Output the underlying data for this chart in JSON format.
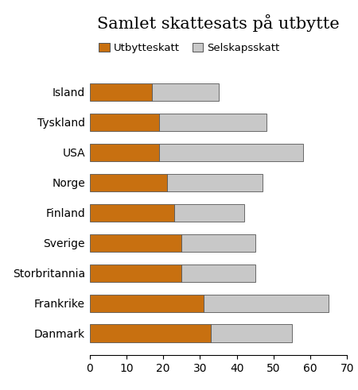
{
  "title": "Samlet skattesats på utbytte",
  "categories": [
    "Island",
    "Tyskland",
    "USA",
    "Norge",
    "Finland",
    "Sverige",
    "Storbritannia",
    "Frankrike",
    "Danmark"
  ],
  "utbytteskatt": [
    17,
    19,
    19,
    21,
    23,
    25,
    25,
    31,
    33
  ],
  "selskapsskatt": [
    18,
    29,
    39,
    26,
    19,
    20,
    20,
    34,
    22
  ],
  "color_utbytte": "#C87010",
  "color_selskap": "#C8C8C8",
  "xlim": [
    0,
    70
  ],
  "xticks": [
    0,
    10,
    20,
    30,
    40,
    50,
    60,
    70
  ],
  "legend_utbytte": "Utbytteskatt",
  "legend_selskap": "Selskapsskatt",
  "background_color": "#ffffff",
  "bar_edgecolor": "#555555",
  "title_fontsize": 15,
  "legend_fontsize": 9.5,
  "tick_fontsize": 10
}
